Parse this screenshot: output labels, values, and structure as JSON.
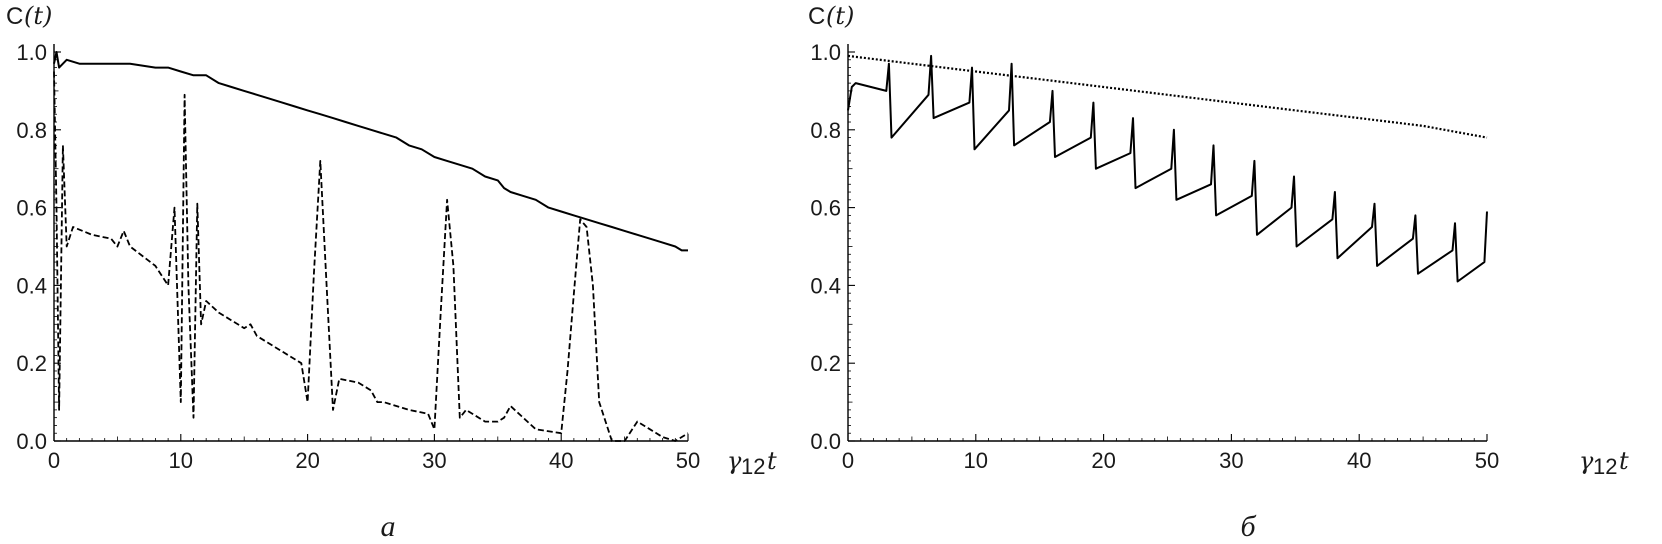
{
  "chart_data": [
    {
      "type": "line",
      "panel_label": "а",
      "ylabel": "C(t)",
      "xlabel": "γ12 t",
      "ylabel_parts": {
        "base": "C",
        "arg": "(t)"
      },
      "xlabel_parts": {
        "sym": "γ",
        "sub": "12",
        "var": "t"
      },
      "xlim": [
        0,
        50
      ],
      "ylim": [
        0,
        1.0
      ],
      "xticks": [
        0,
        10,
        20,
        30,
        40,
        50
      ],
      "yticks": [
        0.0,
        0.2,
        0.4,
        0.6,
        0.8,
        1.0
      ],
      "xtick_labels": [
        "0",
        "10",
        "20",
        "30",
        "40",
        "50"
      ],
      "ytick_labels": [
        "0.0",
        "0.2",
        "0.4",
        "0.6",
        "0.8",
        "1.0"
      ],
      "series": [
        {
          "style": "solid",
          "x": [
            0,
            0.2,
            0.4,
            1,
            2,
            3,
            4,
            6,
            8,
            9,
            10,
            11,
            12,
            13,
            14,
            15,
            16,
            17,
            18,
            19,
            20,
            21,
            22,
            23,
            24,
            25,
            26,
            27,
            28,
            29,
            30,
            31,
            32,
            33,
            34,
            35,
            35.5,
            36,
            37,
            38,
            39,
            40,
            41,
            42,
            43,
            44,
            45,
            46,
            47,
            48,
            49,
            49.5,
            50
          ],
          "y": [
            0.97,
            1.0,
            0.96,
            0.98,
            0.97,
            0.97,
            0.97,
            0.97,
            0.96,
            0.96,
            0.95,
            0.94,
            0.94,
            0.92,
            0.91,
            0.9,
            0.89,
            0.88,
            0.87,
            0.86,
            0.85,
            0.84,
            0.83,
            0.82,
            0.81,
            0.8,
            0.79,
            0.78,
            0.76,
            0.75,
            0.73,
            0.72,
            0.71,
            0.7,
            0.68,
            0.67,
            0.65,
            0.64,
            0.63,
            0.62,
            0.6,
            0.59,
            0.58,
            0.57,
            0.56,
            0.55,
            0.54,
            0.53,
            0.52,
            0.51,
            0.5,
            0.49,
            0.49
          ]
        },
        {
          "style": "dashed",
          "x": [
            0,
            0.2,
            0.4,
            0.7,
            1,
            1.5,
            3,
            4.5,
            5,
            5.5,
            6,
            8,
            9,
            9.5,
            10,
            10.3,
            10.6,
            11,
            11.3,
            11.6,
            12,
            13,
            14,
            15,
            15.5,
            16,
            18,
            19.5,
            20,
            20.5,
            21,
            21.5,
            22,
            22.5,
            24,
            25,
            25.5,
            26,
            28,
            29.5,
            30,
            30.5,
            31,
            31.5,
            32,
            32.5,
            34,
            35,
            35.5,
            36,
            38,
            40,
            40.5,
            41,
            41.5,
            42,
            42.5,
            43,
            44,
            45,
            46,
            47,
            48,
            49,
            50
          ],
          "y": [
            0.95,
            0.6,
            0.08,
            0.76,
            0.5,
            0.55,
            0.53,
            0.52,
            0.5,
            0.54,
            0.5,
            0.45,
            0.4,
            0.6,
            0.1,
            0.89,
            0.4,
            0.06,
            0.61,
            0.3,
            0.36,
            0.33,
            0.31,
            0.29,
            0.3,
            0.27,
            0.23,
            0.2,
            0.1,
            0.43,
            0.72,
            0.4,
            0.08,
            0.16,
            0.15,
            0.13,
            0.1,
            0.1,
            0.08,
            0.07,
            0.03,
            0.33,
            0.62,
            0.45,
            0.06,
            0.08,
            0.05,
            0.05,
            0.06,
            0.09,
            0.03,
            0.02,
            0.18,
            0.38,
            0.57,
            0.55,
            0.4,
            0.1,
            0.0,
            0.0,
            0.05,
            0.03,
            0.01,
            0.0,
            0.02
          ]
        }
      ]
    },
    {
      "type": "line",
      "panel_label": "б",
      "ylabel": "C(t)",
      "xlabel": "γ12 t",
      "ylabel_parts": {
        "base": "C",
        "arg": "(t)"
      },
      "xlabel_parts": {
        "sym": "γ",
        "sub": "12",
        "var": "t"
      },
      "xlim": [
        0,
        50
      ],
      "ylim": [
        0,
        1.0
      ],
      "xticks": [
        0,
        10,
        20,
        30,
        40,
        50
      ],
      "yticks": [
        0.0,
        0.2,
        0.4,
        0.6,
        0.8,
        1.0
      ],
      "xtick_labels": [
        "0",
        "10",
        "20",
        "30",
        "40",
        "50"
      ],
      "ytick_labels": [
        "0.0",
        "0.2",
        "0.4",
        "0.6",
        "0.8",
        "1.0"
      ],
      "series": [
        {
          "style": "dotted",
          "x": [
            0,
            5,
            10,
            15,
            20,
            25,
            30,
            35,
            40,
            45,
            50
          ],
          "y": [
            0.99,
            0.97,
            0.95,
            0.93,
            0.91,
            0.89,
            0.87,
            0.85,
            0.83,
            0.81,
            0.78
          ]
        },
        {
          "style": "solid",
          "x": [
            0,
            0.3,
            0.6,
            3,
            3.2,
            3.4,
            6.3,
            6.5,
            6.7,
            9.5,
            9.7,
            9.9,
            12.6,
            12.8,
            13,
            15.8,
            16,
            16.2,
            19,
            19.2,
            19.4,
            22.1,
            22.3,
            22.5,
            25.3,
            25.5,
            25.7,
            28.4,
            28.6,
            28.8,
            31.6,
            31.8,
            32,
            34.7,
            34.9,
            35.1,
            37.9,
            38.1,
            38.3,
            41,
            41.2,
            41.4,
            44.2,
            44.4,
            44.6,
            47.3,
            47.5,
            47.7,
            49.8,
            50
          ],
          "y": [
            0.85,
            0.91,
            0.92,
            0.9,
            0.97,
            0.78,
            0.89,
            0.99,
            0.83,
            0.87,
            0.96,
            0.75,
            0.85,
            0.97,
            0.76,
            0.82,
            0.9,
            0.73,
            0.78,
            0.87,
            0.7,
            0.74,
            0.83,
            0.65,
            0.7,
            0.8,
            0.62,
            0.66,
            0.76,
            0.58,
            0.63,
            0.72,
            0.53,
            0.6,
            0.68,
            0.5,
            0.57,
            0.64,
            0.47,
            0.55,
            0.61,
            0.45,
            0.52,
            0.58,
            0.43,
            0.49,
            0.56,
            0.41,
            0.46,
            0.59
          ]
        }
      ]
    }
  ]
}
